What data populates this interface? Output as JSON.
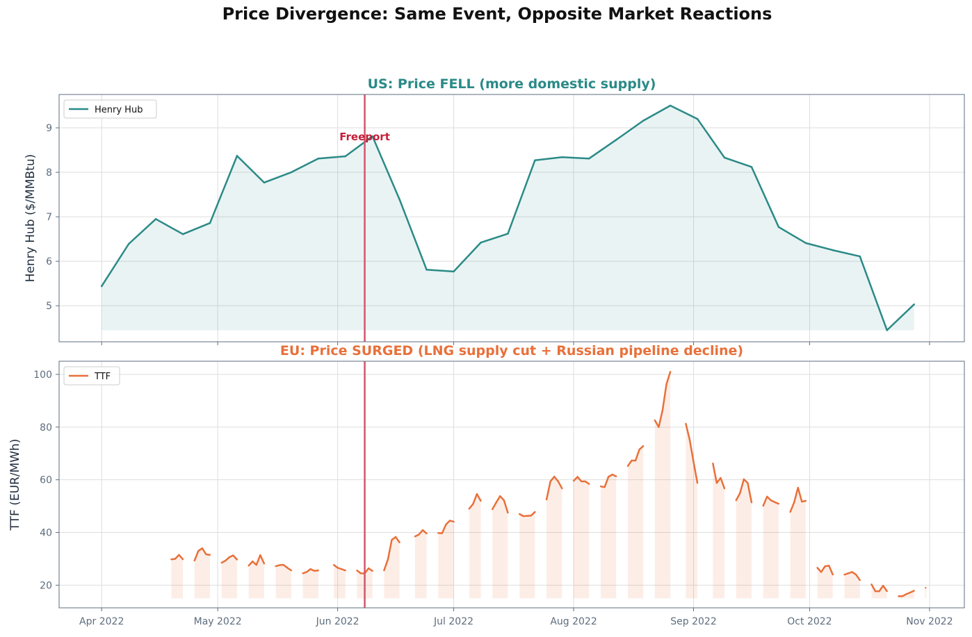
{
  "title": "Price Divergence: Same Event, Opposite Market Reactions",
  "colors": {
    "henry_hub": "#2a8a87",
    "ttf": "#e8703a",
    "event": "#d2566b",
    "event_label": "#c41e3a"
  },
  "chart_data": [
    {
      "type": "area",
      "title": "US: Price FELL (more domestic supply)",
      "ylabel": "Henry Hub ($/MMBtu)",
      "xlim": [
        "2022-03-21",
        "2022-11-10"
      ],
      "ylim": [
        4.19,
        9.75
      ],
      "yticks": [
        5,
        6,
        7,
        8,
        9
      ],
      "grid": true,
      "legend": {
        "position": "top-left",
        "entries": [
          "Henry Hub"
        ]
      },
      "event": {
        "date": "2022-06-08",
        "label": "Freeport"
      },
      "fill_baseline": 4.45,
      "series": [
        {
          "name": "Henry Hub",
          "x": [
            "2022-04-01",
            "2022-04-08",
            "2022-04-15",
            "2022-04-22",
            "2022-04-29",
            "2022-05-06",
            "2022-05-13",
            "2022-05-20",
            "2022-05-27",
            "2022-06-03",
            "2022-06-10",
            "2022-06-17",
            "2022-06-24",
            "2022-07-01",
            "2022-07-08",
            "2022-07-15",
            "2022-07-22",
            "2022-07-29",
            "2022-08-05",
            "2022-08-12",
            "2022-08-19",
            "2022-08-26",
            "2022-09-02",
            "2022-09-09",
            "2022-09-16",
            "2022-09-23",
            "2022-09-30",
            "2022-10-07",
            "2022-10-14",
            "2022-10-21",
            "2022-10-28"
          ],
          "y": [
            5.44,
            6.39,
            6.95,
            6.61,
            6.86,
            8.37,
            7.77,
            8.0,
            8.31,
            8.36,
            8.81,
            7.39,
            5.81,
            5.77,
            6.42,
            6.62,
            8.27,
            8.34,
            8.31,
            8.73,
            9.16,
            9.5,
            9.2,
            8.33,
            8.12,
            6.77,
            6.41,
            6.25,
            6.11,
            4.45,
            5.03
          ]
        }
      ]
    },
    {
      "type": "line",
      "title": "EU: Price SURGED (LNG supply cut + Russian pipeline decline)",
      "ylabel": "TTF (EUR/MWh)",
      "xlim": [
        "2022-03-21",
        "2022-11-10"
      ],
      "ylim": [
        11.4,
        105
      ],
      "yticks": [
        20,
        40,
        60,
        80,
        100
      ],
      "xticks": [
        "Apr 2022",
        "May 2022",
        "Jun 2022",
        "Jul 2022",
        "Aug 2022",
        "Sep 2022",
        "Oct 2022",
        "Nov 2022"
      ],
      "xtick_dates": [
        "2022-04-01",
        "2022-05-01",
        "2022-06-01",
        "2022-07-01",
        "2022-08-01",
        "2022-09-01",
        "2022-10-01",
        "2022-11-01"
      ],
      "grid": true,
      "legend": {
        "position": "top-left",
        "entries": [
          "TTF"
        ]
      },
      "event": {
        "date": "2022-06-08"
      },
      "fill_baseline": 15,
      "series": [
        {
          "name": "TTF",
          "segments": [
            {
              "start": "2022-04-19",
              "y": [
                29.8,
                30,
                31.5,
                29.8
              ]
            },
            {
              "start": "2022-04-25",
              "y": [
                29.3,
                33,
                34,
                31.7,
                31.5
              ]
            },
            {
              "start": "2022-05-02",
              "y": [
                28.5,
                29.3,
                30.6,
                31.3,
                29.7
              ]
            },
            {
              "start": "2022-05-09",
              "y": [
                27.4,
                29,
                27.7,
                31.4,
                28.2
              ]
            },
            {
              "start": "2022-05-16",
              "y": [
                27.2,
                27.6,
                27.7,
                26.6,
                25.6
              ]
            },
            {
              "start": "2022-05-23",
              "y": [
                24.5,
                25,
                26.1,
                25.4,
                25.6
              ]
            },
            {
              "start": "2022-05-31",
              "y": [
                27.7,
                26.6,
                26.1,
                25.6
              ]
            },
            {
              "start": "2022-06-06",
              "y": [
                25.6,
                24.5,
                24.5,
                26.4,
                25.4
              ]
            },
            {
              "start": "2022-06-13",
              "y": [
                25.6,
                29.8,
                37.2,
                38.3,
                36.2
              ]
            },
            {
              "start": "2022-06-21",
              "y": [
                38.5,
                39.2,
                40.9,
                39.6
              ]
            },
            {
              "start": "2022-06-27",
              "y": [
                39.8,
                39.7,
                43,
                44.5,
                44.1
              ]
            },
            {
              "start": "2022-07-05",
              "y": [
                49,
                50.8,
                54.6,
                52
              ]
            },
            {
              "start": "2022-07-11",
              "y": [
                48.8,
                51.4,
                53.8,
                52.2,
                47.5
              ]
            },
            {
              "start": "2022-07-18",
              "y": [
                47,
                46.2,
                46.3,
                46.4,
                47.8
              ]
            },
            {
              "start": "2022-07-25",
              "y": [
                52.5,
                59.4,
                61.2,
                59.4,
                56.7
              ]
            },
            {
              "start": "2022-08-01",
              "y": [
                59.6,
                61.1,
                59.4,
                59.4,
                58.4
              ]
            },
            {
              "start": "2022-08-08",
              "y": [
                57.5,
                57.2,
                61.1,
                62,
                61.3
              ]
            },
            {
              "start": "2022-08-15",
              "y": [
                65.2,
                67.3,
                67.3,
                71.5,
                72.8
              ]
            },
            {
              "start": "2022-08-22",
              "y": [
                82.6,
                80,
                86.5,
                96.3,
                101
              ]
            },
            {
              "start": "2022-08-30",
              "y": [
                81.3,
                75.2,
                66.8,
                58.8
              ]
            },
            {
              "start": "2022-09-06",
              "y": [
                66.2,
                58.8,
                60.7,
                56.7
              ]
            },
            {
              "start": "2022-09-12",
              "y": [
                52.2,
                54.9,
                60.2,
                58.8,
                51.4
              ]
            },
            {
              "start": "2022-09-19",
              "y": [
                50.1,
                53.6,
                52.2,
                51.5,
                50.9
              ]
            },
            {
              "start": "2022-09-26",
              "y": [
                47.8,
                51.4,
                57,
                51.7,
                52
              ]
            },
            {
              "start": "2022-10-03",
              "y": [
                26.6,
                25,
                27.2,
                27.4,
                24
              ]
            },
            {
              "start": "2022-10-10",
              "y": [
                24,
                24.5,
                25,
                24,
                21.9
              ]
            },
            {
              "start": "2022-10-17",
              "y": [
                20.3,
                17.7,
                17.7,
                19.8,
                17.7
              ]
            },
            {
              "start": "2022-10-24",
              "y": [
                15.8,
                15.8,
                16.6,
                17.2,
                17.9
              ]
            },
            {
              "start": "2022-10-31",
              "y": [
                19
              ]
            }
          ]
        }
      ]
    }
  ]
}
